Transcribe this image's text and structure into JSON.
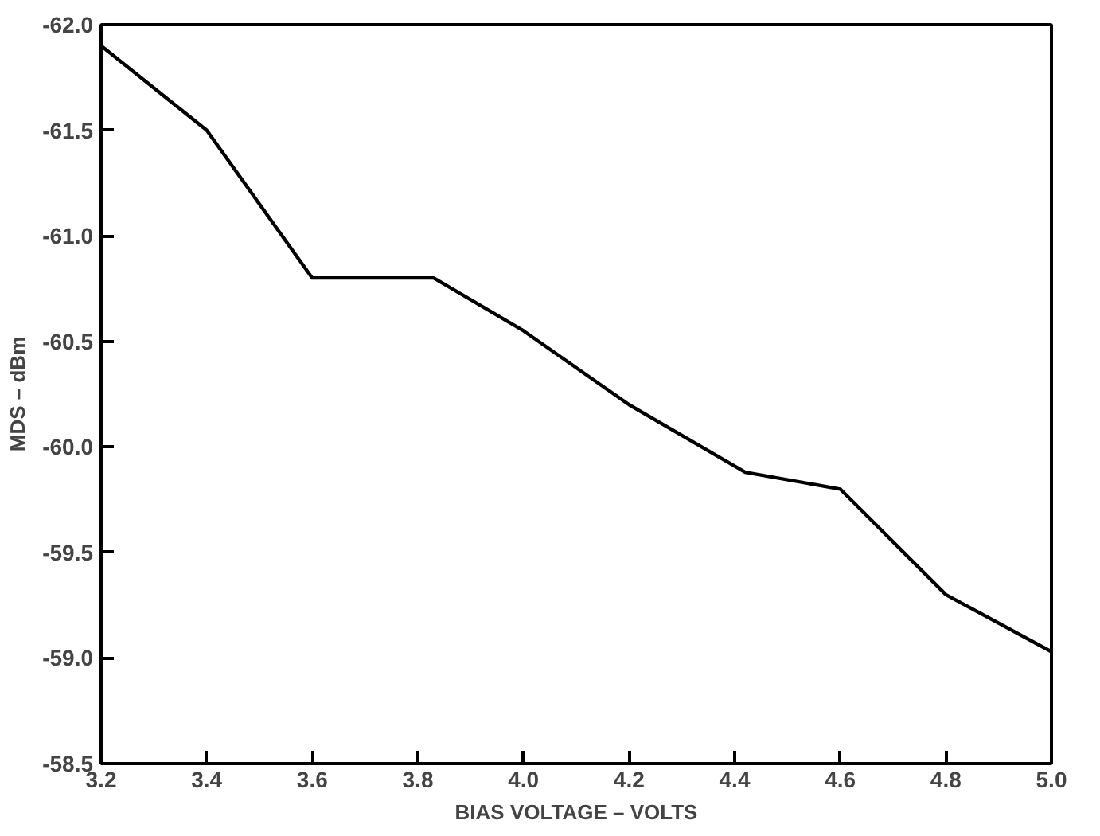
{
  "chart_data": {
    "type": "line",
    "xlabel": "BIAS VOLTAGE – VOLTS",
    "ylabel": "MDS – dBm",
    "x": [
      3.2,
      3.4,
      3.6,
      3.83,
      4.0,
      4.2,
      4.42,
      4.6,
      4.8,
      5.0
    ],
    "series": [
      {
        "color": "#000000",
        "values": [
          -61.9,
          -61.5,
          -60.8,
          -60.8,
          -60.55,
          -60.2,
          -59.88,
          -59.8,
          -59.3,
          -59.03
        ]
      }
    ],
    "xlim": [
      3.2,
      5.0
    ],
    "ylim": [
      -58.5,
      -62.0
    ],
    "xticks": [
      {
        "value": 3.2,
        "label": "3.2"
      },
      {
        "value": 3.4,
        "label": "3.4"
      },
      {
        "value": 3.6,
        "label": "3.6"
      },
      {
        "value": 3.8,
        "label": "3.8"
      },
      {
        "value": 4.0,
        "label": "4.0"
      },
      {
        "value": 4.2,
        "label": "4.2"
      },
      {
        "value": 4.4,
        "label": "4.4"
      },
      {
        "value": 4.6,
        "label": "4.6"
      },
      {
        "value": 4.8,
        "label": "4.8"
      },
      {
        "value": 5.0,
        "label": "5.0"
      }
    ],
    "yticks": [
      {
        "value": -62.0,
        "label": "-62.0"
      },
      {
        "value": -61.5,
        "label": "-61.5"
      },
      {
        "value": -61.0,
        "label": "-61.0"
      },
      {
        "value": -60.5,
        "label": "-60.5"
      },
      {
        "value": -60.0,
        "label": "-60.0"
      },
      {
        "value": -59.5,
        "label": "-59.5"
      },
      {
        "value": -59.0,
        "label": "-59.0"
      },
      {
        "value": -58.5,
        "label": "-58.5"
      }
    ],
    "grid": false,
    "marker": "none",
    "line_style": "solid"
  }
}
